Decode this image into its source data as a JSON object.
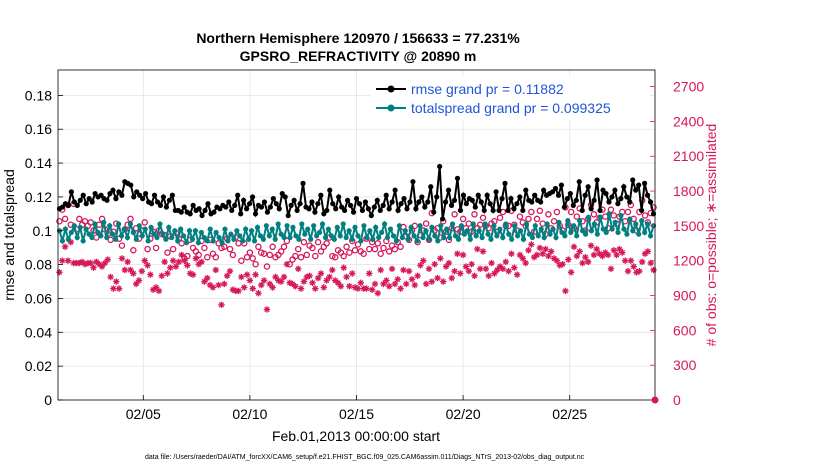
{
  "chart_data": {
    "type": "line",
    "title_line1": "Northern Hemisphere 120970 / 156633 = 77.231%",
    "title_line2": "GPSRO_REFRACTIVITY @ 20890 m",
    "xlabel": "Feb.01,2013 00:00:00 start",
    "ylabel_left": "rmse and totalspread",
    "ylabel_right": "# of obs: o=possible; ∗=assimilated",
    "footer": "data file: /Users/raeder/DAI/ATM_forcXX/CAM6_setup/f.e21.FHIST_BGC.f09_025.CAM6assim.011/Diags_NTrS_2013-02/obs_diag_output.nc",
    "x_range_days": [
      1.0,
      29.0
    ],
    "x_ticks": [
      {
        "label": "02/05",
        "day": 5
      },
      {
        "label": "02/10",
        "day": 10
      },
      {
        "label": "02/15",
        "day": 15
      },
      {
        "label": "02/20",
        "day": 20
      },
      {
        "label": "02/25",
        "day": 25
      }
    ],
    "y_left_range": [
      0,
      0.195
    ],
    "y_left_ticks": [
      "0",
      "0.02",
      "0.04",
      "0.06",
      "0.08",
      "0.1",
      "0.12",
      "0.14",
      "0.16",
      "0.18"
    ],
    "y_right_range": [
      0,
      2843
    ],
    "y_right_ticks": [
      "0",
      "300",
      "600",
      "900",
      "1200",
      "1500",
      "1800",
      "2100",
      "2400",
      "2700"
    ],
    "grid": true,
    "legend_position": "top-right",
    "colors": {
      "rmse": "#000000",
      "spread": "#008080",
      "obs": "#d6185a"
    },
    "series": [
      {
        "name": "rmse grand pr = 0.11882",
        "axis": "left",
        "values": [
          0.113,
          0.114,
          0.116,
          0.115,
          0.123,
          0.117,
          0.115,
          0.118,
          0.121,
          0.116,
          0.119,
          0.117,
          0.122,
          0.12,
          0.121,
          0.119,
          0.118,
          0.122,
          0.124,
          0.119,
          0.123,
          0.121,
          0.129,
          0.128,
          0.127,
          0.12,
          0.123,
          0.121,
          0.119,
          0.122,
          0.117,
          0.116,
          0.121,
          0.117,
          0.115,
          0.12,
          0.114,
          0.118,
          0.121,
          0.112,
          0.112,
          0.111,
          0.114,
          0.111,
          0.11,
          0.115,
          0.112,
          0.113,
          0.109,
          0.112,
          0.116,
          0.11,
          0.111,
          0.114,
          0.113,
          0.115,
          0.114,
          0.117,
          0.112,
          0.115,
          0.121,
          0.11,
          0.118,
          0.113,
          0.116,
          0.12,
          0.11,
          0.115,
          0.114,
          0.117,
          0.111,
          0.114,
          0.119,
          0.116,
          0.113,
          0.122,
          0.12,
          0.109,
          0.115,
          0.118,
          0.112,
          0.116,
          0.128,
          0.114,
          0.113,
          0.117,
          0.111,
          0.116,
          0.121,
          0.11,
          0.112,
          0.124,
          0.116,
          0.113,
          0.12,
          0.114,
          0.112,
          0.118,
          0.115,
          0.111,
          0.119,
          0.116,
          0.112,
          0.117,
          0.113,
          0.109,
          0.114,
          0.118,
          0.112,
          0.115,
          0.121,
          0.113,
          0.117,
          0.124,
          0.112,
          0.116,
          0.119,
          0.113,
          0.117,
          0.129,
          0.113,
          0.117,
          0.12,
          0.114,
          0.117,
          0.126,
          0.111,
          0.12,
          0.138,
          0.107,
          0.117,
          0.124,
          0.115,
          0.118,
          0.131,
          0.112,
          0.121,
          0.116,
          0.119,
          0.118,
          0.114,
          0.121,
          0.117,
          0.112,
          0.121,
          0.116,
          0.112,
          0.123,
          0.112,
          0.119,
          0.128,
          0.112,
          0.119,
          0.113,
          0.116,
          0.12,
          0.112,
          0.124,
          0.118,
          0.117,
          0.121,
          0.118,
          0.117,
          0.124,
          0.121,
          0.122,
          0.123,
          0.125,
          0.121,
          0.127,
          0.114,
          0.119,
          0.122,
          0.115,
          0.118,
          0.129,
          0.112,
          0.121,
          0.126,
          0.113,
          0.118,
          0.13,
          0.112,
          0.124,
          0.122,
          0.117,
          0.12,
          0.124,
          0.116,
          0.119,
          0.126,
          0.12,
          0.117,
          0.13,
          0.124,
          0.127,
          0.112,
          0.128,
          0.121,
          0.117,
          0.11
        ]
      },
      {
        "name": "totalspread grand pr = 0.099325",
        "axis": "left",
        "values": [
          0.1,
          0.094,
          0.101,
          0.095,
          0.099,
          0.103,
          0.096,
          0.102,
          0.094,
          0.101,
          0.098,
          0.096,
          0.104,
          0.099,
          0.097,
          0.105,
          0.096,
          0.103,
          0.098,
          0.095,
          0.104,
          0.097,
          0.101,
          0.096,
          0.104,
          0.099,
          0.095,
          0.103,
          0.097,
          0.101,
          0.094,
          0.102,
          0.098,
          0.096,
          0.104,
          0.098,
          0.095,
          0.102,
          0.096,
          0.1,
          0.094,
          0.101,
          0.097,
          0.093,
          0.1,
          0.095,
          0.1,
          0.093,
          0.099,
          0.096,
          0.094,
          0.101,
          0.094,
          0.099,
          0.096,
          0.093,
          0.101,
          0.094,
          0.098,
          0.095,
          0.1,
          0.097,
          0.094,
          0.101,
          0.095,
          0.1,
          0.094,
          0.102,
          0.097,
          0.095,
          0.103,
          0.097,
          0.101,
          0.095,
          0.104,
          0.098,
          0.096,
          0.103,
          0.096,
          0.102,
          0.097,
          0.095,
          0.104,
          0.098,
          0.101,
          0.095,
          0.103,
          0.097,
          0.099,
          0.104,
          0.096,
          0.101,
          0.097,
          0.095,
          0.102,
          0.097,
          0.104,
          0.096,
          0.1,
          0.095,
          0.102,
          0.097,
          0.094,
          0.103,
          0.096,
          0.1,
          0.095,
          0.102,
          0.096,
          0.099,
          0.104,
          0.096,
          0.101,
          0.097,
          0.094,
          0.103,
          0.096,
          0.1,
          0.095,
          0.102,
          0.097,
          0.094,
          0.103,
          0.096,
          0.1,
          0.095,
          0.102,
          0.097,
          0.094,
          0.103,
          0.096,
          0.101,
          0.096,
          0.104,
          0.097,
          0.095,
          0.103,
          0.098,
          0.1,
          0.095,
          0.104,
          0.097,
          0.1,
          0.096,
          0.104,
          0.098,
          0.095,
          0.103,
          0.097,
          0.101,
          0.096,
          0.104,
          0.098,
          0.095,
          0.103,
          0.097,
          0.1,
          0.095,
          0.104,
          0.098,
          0.096,
          0.103,
          0.097,
          0.101,
          0.096,
          0.104,
          0.098,
          0.101,
          0.096,
          0.105,
          0.099,
          0.097,
          0.106,
          0.099,
          0.103,
          0.097,
          0.106,
          0.1,
          0.098,
          0.108,
          0.1,
          0.104,
          0.098,
          0.108,
          0.101,
          0.099,
          0.11,
          0.101,
          0.105,
          0.099,
          0.109,
          0.101,
          0.098,
          0.107,
          0.1,
          0.104,
          0.098,
          0.106,
          0.099,
          0.104,
          0.097,
          0.103
        ]
      },
      {
        "name": "possible obs",
        "axis": "right",
        "marker": "circle",
        "values": [
          1540,
          1640,
          1560,
          1680,
          1510,
          1690,
          1470,
          1560,
          1510,
          1540,
          1500,
          1530,
          1460,
          1400,
          1510,
          1560,
          1470,
          1430,
          1380,
          1450,
          1520,
          1390,
          1330,
          1470,
          1510,
          1560,
          1290,
          1480,
          1390,
          1460,
          1530,
          1300,
          1390,
          1450,
          1310,
          1460,
          1430,
          1420,
          1270,
          1410,
          1300,
          1440,
          1390,
          1350,
          1220,
          1240,
          1380,
          1310,
          1280,
          1250,
          1370,
          1310,
          1230,
          1380,
          1260,
          1230,
          1350,
          1310,
          1320,
          1390,
          1300,
          1250,
          1400,
          1350,
          1200,
          1350,
          1230,
          1270,
          1220,
          1170,
          1320,
          1270,
          1260,
          1150,
          1250,
          1320,
          1230,
          1250,
          1280,
          1320,
          1370,
          1170,
          1210,
          1240,
          1300,
          1230,
          1360,
          1250,
          1330,
          1310,
          1240,
          1360,
          1280,
          1320,
          1350,
          1400,
          1240,
          1230,
          1290,
          1270,
          1240,
          1320,
          1270,
          1370,
          1290,
          1340,
          1280,
          1260,
          1390,
          1300,
          1360,
          1300,
          1350,
          1260,
          1310,
          1370,
          1280,
          1330,
          1300,
          1360,
          1320,
          1490,
          1410,
          1380,
          1460,
          1500,
          1360,
          1420,
          1460,
          1520,
          1380,
          1610,
          1460,
          1480,
          1400,
          1540,
          1450,
          1380,
          1480,
          1600,
          1470,
          1450,
          1560,
          1480,
          1520,
          1450,
          1600,
          1480,
          1510,
          1570,
          1500,
          1480,
          1520,
          1540,
          1450,
          1570,
          1620,
          1500,
          1500,
          1630,
          1510,
          1460,
          1580,
          1530,
          1500,
          1560,
          1620,
          1450,
          1560,
          1630,
          1520,
          1430,
          1600,
          1480,
          1540,
          1620,
          1500,
          1460,
          1660,
          1510,
          1620,
          1480,
          1580,
          1650,
          1540,
          1460,
          1560,
          1680,
          1600,
          1530,
          1570,
          1640,
          1580,
          1480,
          1640,
          1590,
          1520,
          1580,
          1620,
          1540,
          1620,
          1680,
          1560,
          1460,
          1620,
          1720,
          1590,
          1530,
          1610,
          1660
        ]
      },
      {
        "name": "assimilated obs",
        "axis": "right",
        "marker": "star",
        "values": [
          1100,
          1200,
          1320,
          1200,
          1360,
          1180,
          1180,
          1180,
          1190,
          1170,
          1180,
          1180,
          1140,
          1190,
          1170,
          1150,
          1180,
          1210,
          1060,
          960,
          1020,
          960,
          1220,
          1120,
          1190,
          1120,
          1090,
          1000,
          1030,
          1110,
          1200,
          1160,
          1080,
          950,
          970,
          940,
          1070,
          1190,
          1090,
          1140,
          1200,
          1150,
          1190,
          1250,
          1200,
          1160,
          1090,
          1080,
          1220,
          1170,
          1190,
          1020,
          1050,
          990,
          970,
          1120,
          990,
          820,
          1000,
          1070,
          1110,
          950,
          940,
          940,
          1060,
          970,
          1080,
          1030,
          960,
          1080,
          920,
          990,
          1030,
          780,
          1000,
          970,
          1060,
          1030,
          1020,
          1060,
          1170,
          1010,
          1000,
          980,
          1130,
          960,
          1020,
          1060,
          1070,
          1010,
          960,
          1050,
          1090,
          970,
          1030,
          1060,
          1120,
          1030,
          1010,
          980,
          1140,
          1060,
          980,
          1090,
          970,
          960,
          1010,
          960,
          960,
          1090,
          950,
          1000,
          920,
          1120,
          1000,
          1030,
          980,
          1130,
          1000,
          1040,
          960,
          1120,
          1000,
          1110,
          1040,
          990,
          1070,
          1160,
          1200,
          1000,
          1130,
          1020,
          1170,
          1050,
          1220,
          1020,
          1150,
          1180,
          1050,
          1110,
          1260,
          1090,
          1250,
          1150,
          1110,
          1170,
          1070,
          1300,
          1130,
          1280,
          1130,
          1070,
          1180,
          1090,
          1120,
          1150,
          1130,
          1190,
          1110,
          1260,
          1140,
          1080,
          1250,
          1220,
          1180,
          1290,
          1340,
          1230,
          1250,
          1310,
          1260,
          1300,
          1240,
          1280,
          1220,
          1200,
          1160,
          1170,
          940,
          1210,
          1100,
          1320,
          1240,
          1280,
          1180,
          1230,
          1190,
          1330,
          1250,
          1300,
          1260,
          1240,
          1270,
          1250,
          1130,
          1290,
          1250,
          1300,
          1270,
          1200,
          1110,
          1200,
          1150,
          1100,
          1110,
          1190,
          1260,
          1280,
          1180,
          1120
        ]
      }
    ]
  }
}
